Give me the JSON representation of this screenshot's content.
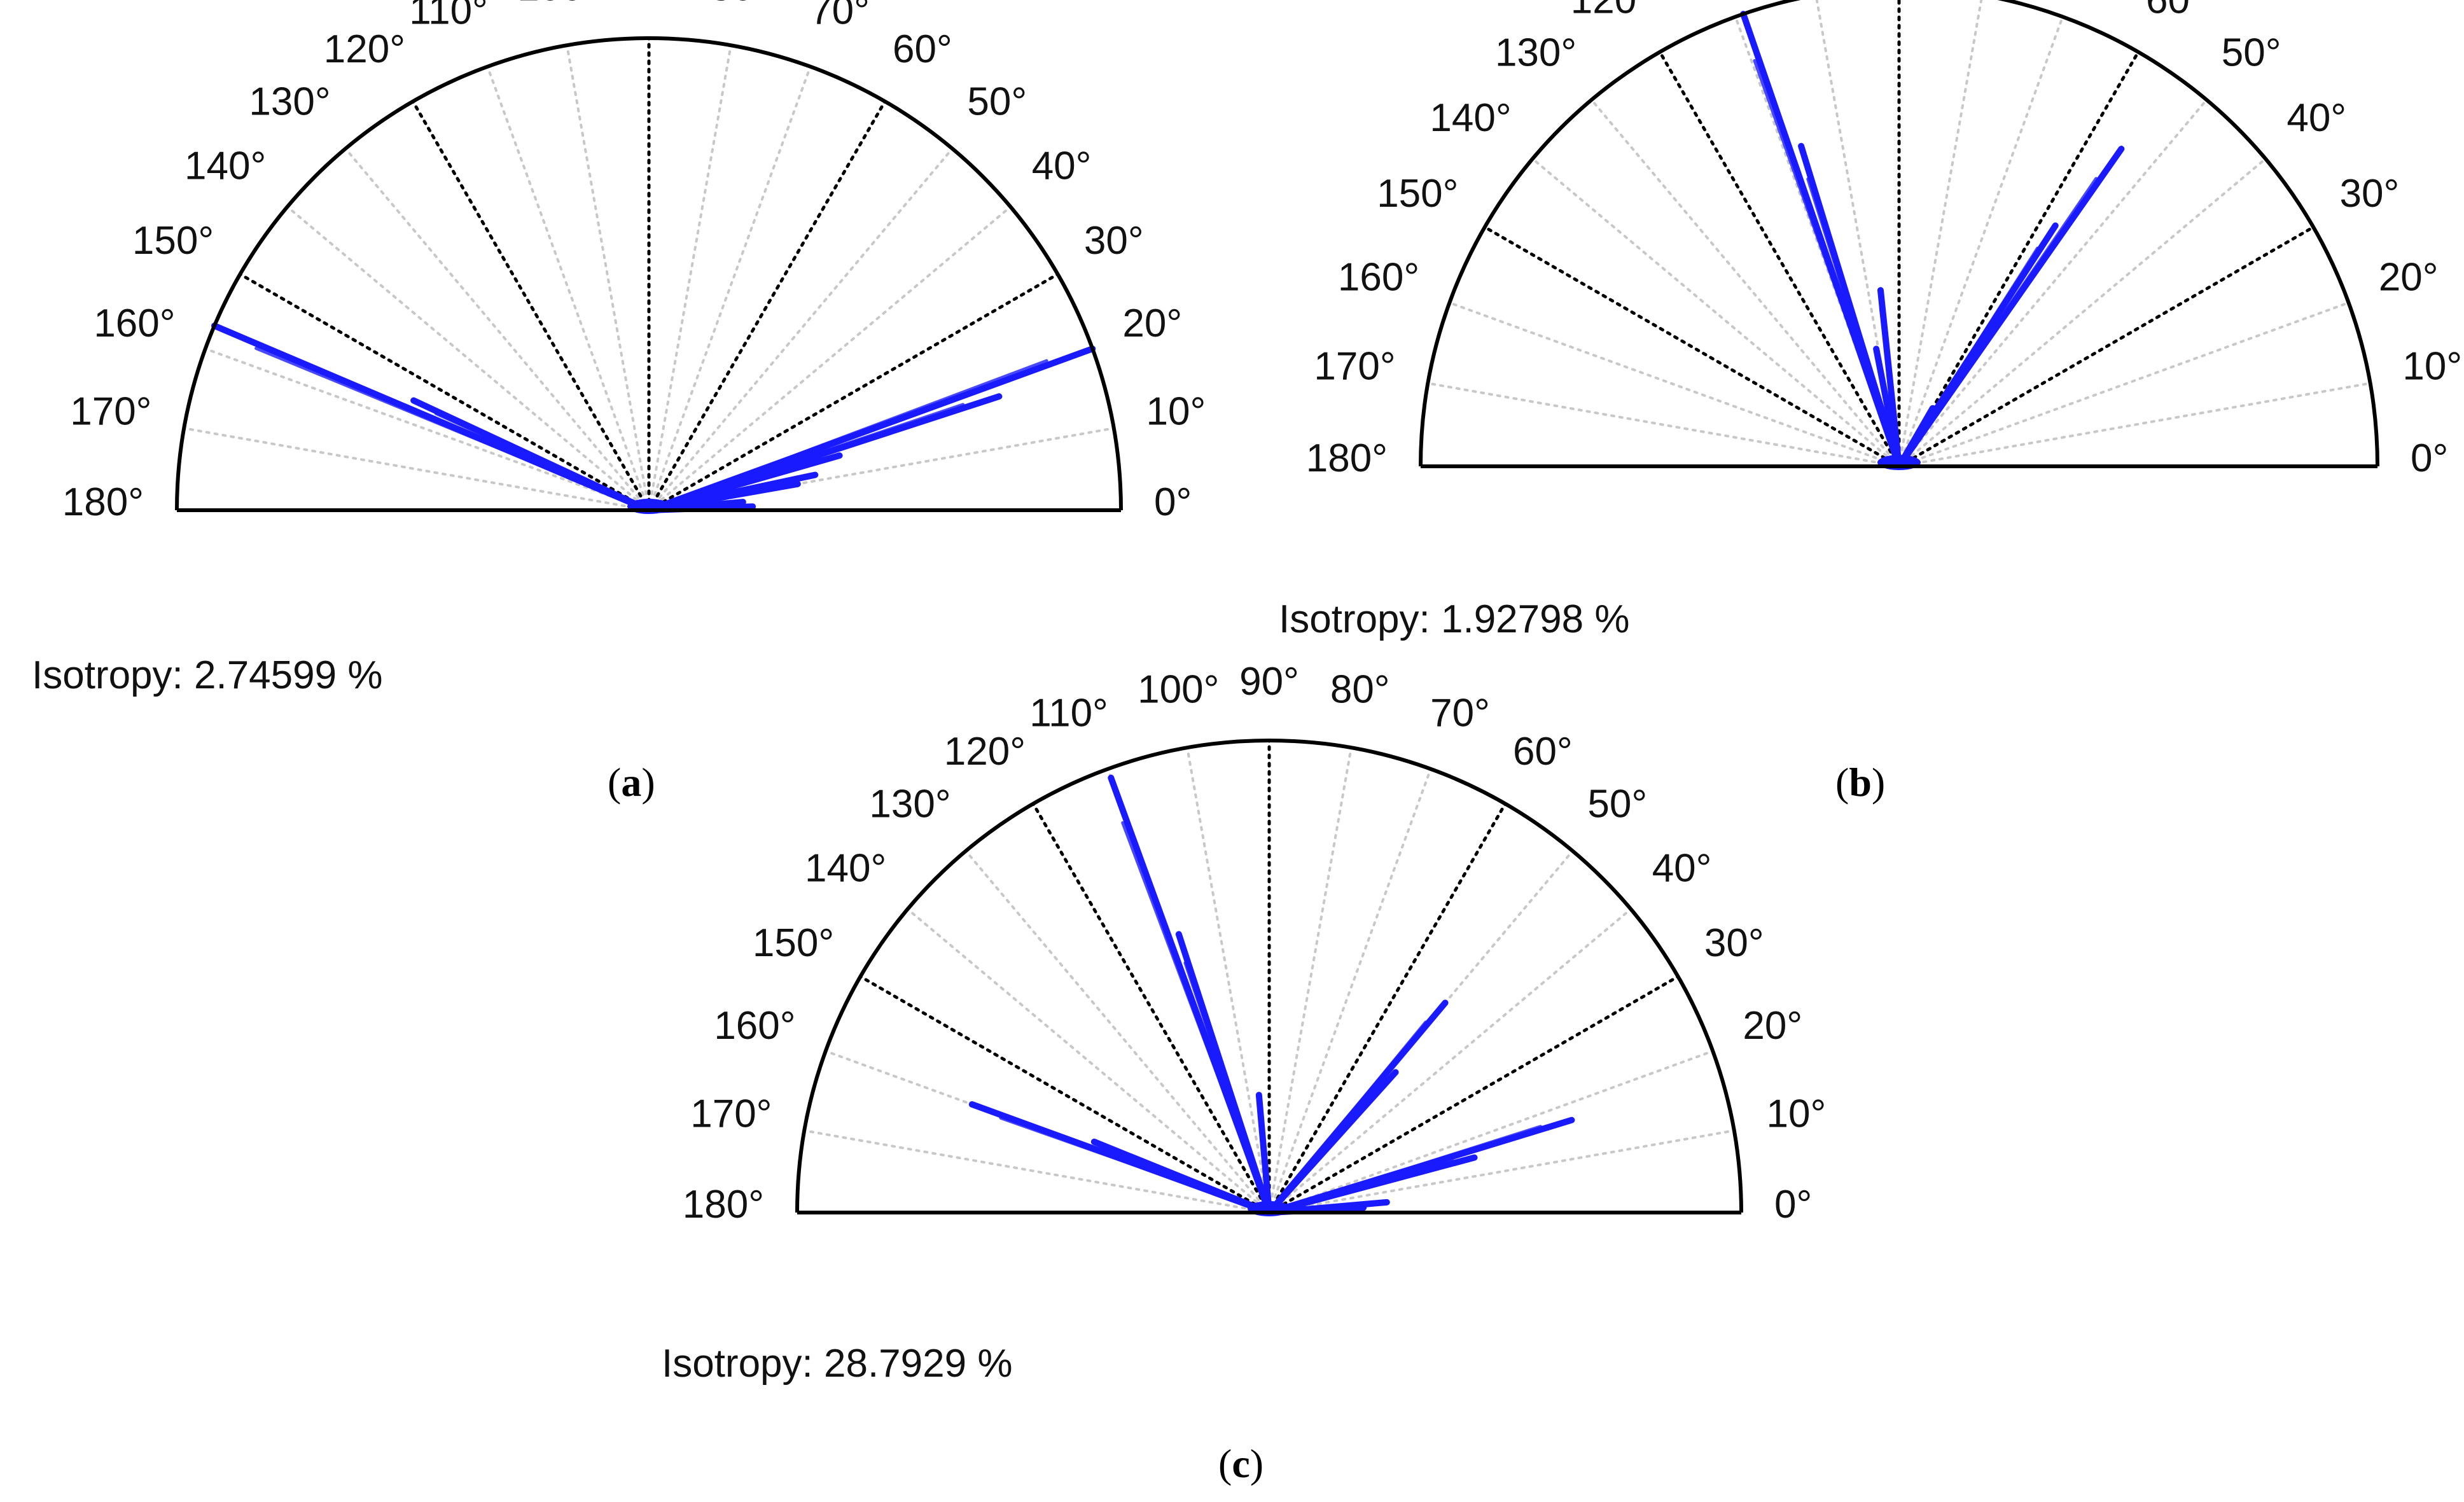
{
  "figure": {
    "tick_labels": [
      "0°",
      "10°",
      "20°",
      "30°",
      "40°",
      "50°",
      "60°",
      "70°",
      "80°",
      "90°",
      "100°",
      "110°",
      "120°",
      "130°",
      "140°",
      "150°",
      "160°",
      "170°",
      "180°"
    ],
    "series_color": "#1a1aff",
    "grid_color": "#c8c8c8",
    "major_color": "#000000"
  },
  "chart_data": [
    {
      "type": "polar-rose",
      "panel": "a",
      "caption_letter": "a",
      "isotropy_text": "Isotropy: 2.74599 %",
      "theta_range_deg": [
        0,
        180
      ],
      "theta_tick_step_deg": 10,
      "radius_max": 1.0,
      "peaks": [
        {
          "angle_deg": 20,
          "r": 1.0
        },
        {
          "angle_deg": 18,
          "r": 0.78
        },
        {
          "angle_deg": 16,
          "r": 0.42
        },
        {
          "angle_deg": 12,
          "r": 0.36
        },
        {
          "angle_deg": 10,
          "r": 0.32
        },
        {
          "angle_deg": 5,
          "r": 0.2
        },
        {
          "angle_deg": 2,
          "r": 0.22
        },
        {
          "angle_deg": 157,
          "r": 1.0
        },
        {
          "angle_deg": 155,
          "r": 0.55
        }
      ]
    },
    {
      "type": "polar-rose",
      "panel": "b",
      "caption_letter": "b",
      "isotropy_text": "Isotropy: 1.92798 %",
      "theta_range_deg": [
        0,
        180
      ],
      "theta_tick_step_deg": 10,
      "radius_max": 1.0,
      "peaks": [
        {
          "angle_deg": 109,
          "r": 1.0
        },
        {
          "angle_deg": 107,
          "r": 0.7
        },
        {
          "angle_deg": 96,
          "r": 0.37
        },
        {
          "angle_deg": 101,
          "r": 0.25
        },
        {
          "angle_deg": 55,
          "r": 0.81
        },
        {
          "angle_deg": 57,
          "r": 0.6
        },
        {
          "angle_deg": 60,
          "r": 0.14
        }
      ]
    },
    {
      "type": "polar-rose",
      "panel": "c",
      "caption_letter": "c",
      "isotropy_text": "Isotropy: 28.7929 %",
      "theta_range_deg": [
        0,
        180
      ],
      "theta_tick_step_deg": 10,
      "radius_max": 1.0,
      "peaks": [
        {
          "angle_deg": 110,
          "r": 0.98
        },
        {
          "angle_deg": 108,
          "r": 0.62
        },
        {
          "angle_deg": 95,
          "r": 0.25
        },
        {
          "angle_deg": 50,
          "r": 0.58
        },
        {
          "angle_deg": 48,
          "r": 0.4
        },
        {
          "angle_deg": 160,
          "r": 0.67
        },
        {
          "angle_deg": 158,
          "r": 0.4
        },
        {
          "angle_deg": 17,
          "r": 0.67
        },
        {
          "angle_deg": 15,
          "r": 0.45
        },
        {
          "angle_deg": 5,
          "r": 0.25
        },
        {
          "angle_deg": 3,
          "r": 0.2
        }
      ]
    }
  ]
}
